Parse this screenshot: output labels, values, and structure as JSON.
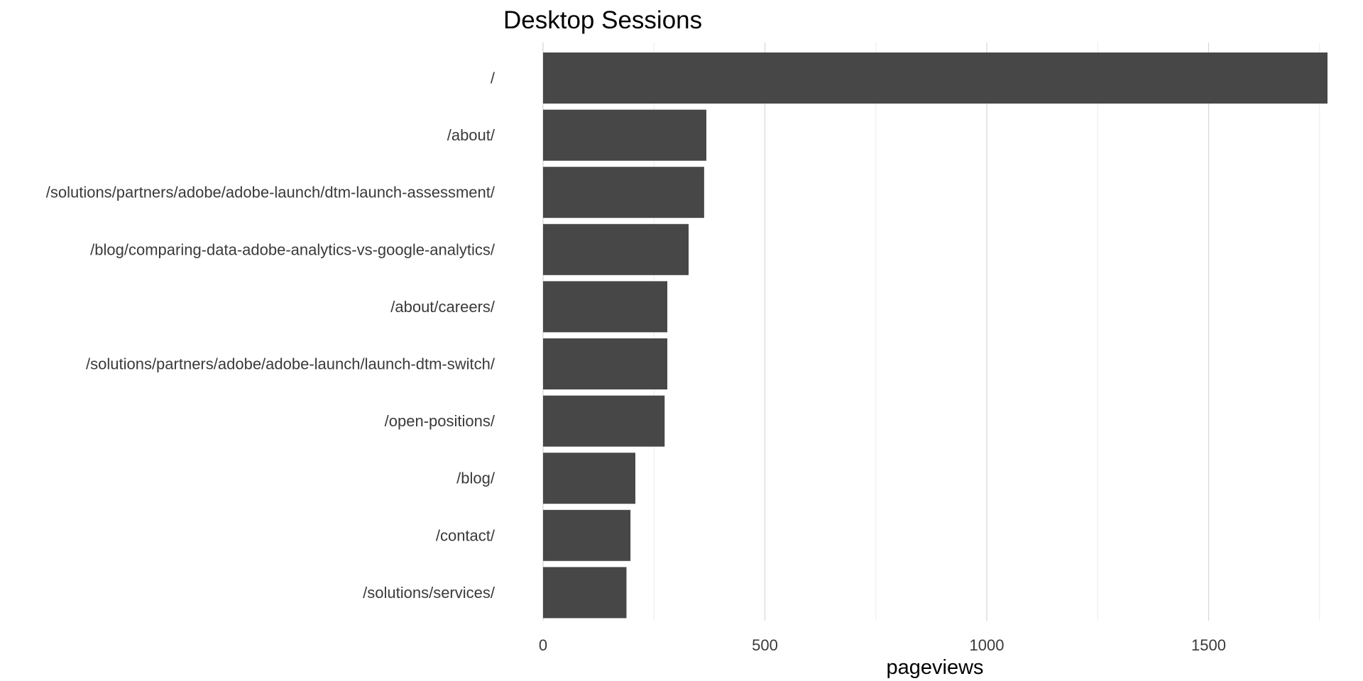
{
  "chart_data": {
    "type": "bar",
    "orientation": "horizontal",
    "title": "Desktop Sessions",
    "xlabel": "pageviews",
    "ylabel": "",
    "categories": [
      "/",
      "/about/",
      "/solutions/partners/adobe/adobe-launch/dtm-launch-assessment/",
      "/blog/comparing-data-adobe-analytics-vs-google-analytics/",
      "/about/careers/",
      "/solutions/partners/adobe/adobe-launch/launch-dtm-switch/",
      "/open-positions/",
      "/blog/",
      "/contact/",
      "/solutions/services/"
    ],
    "values": [
      1768,
      368,
      363,
      328,
      280,
      280,
      274,
      208,
      197,
      188
    ],
    "xlim": [
      0,
      1768
    ],
    "xticks": [
      0,
      500,
      1000,
      1500
    ],
    "xtick_labels": [
      "0",
      "500",
      "1000",
      "1500"
    ],
    "minor_gridlines": [
      250,
      750,
      1250,
      1750
    ],
    "grid": true,
    "legend": "none",
    "bar_color": "#474747"
  }
}
